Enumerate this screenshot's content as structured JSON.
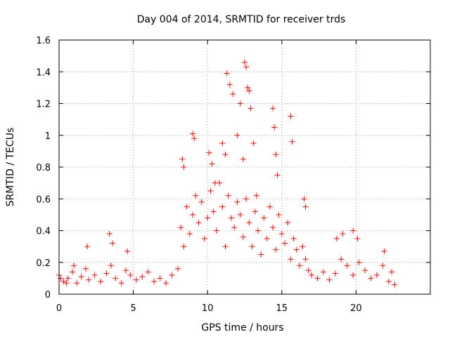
{
  "chart_data": {
    "type": "scatter",
    "title": "Day 004 of 2014, SRMTID for receiver trds",
    "xlabel": "GPS time / hours",
    "ylabel": "SRMTID / TECUs",
    "xlim": [
      0,
      25
    ],
    "ylim": [
      0,
      1.6
    ],
    "xticks": [
      0,
      5,
      10,
      15,
      20
    ],
    "xtick_labels": [
      "0",
      "5",
      "10",
      "15",
      "20"
    ],
    "yticks": [
      0,
      0.2,
      0.4,
      0.6,
      0.8,
      1,
      1.2,
      1.4,
      1.6
    ],
    "ytick_labels": [
      "0",
      "0.2",
      "0.4",
      "0.6",
      "0.8",
      "1",
      "1.2",
      "1.4",
      "1.6"
    ],
    "grid": true,
    "marker": "plus",
    "color": "#ff0000",
    "series": [
      {
        "name": "SRMTID",
        "x": [
          0.0,
          0.3,
          0.6,
          0.9,
          1.2,
          1.5,
          1.8,
          2.0,
          2.4,
          2.8,
          3.2,
          3.5,
          3.8,
          4.2,
          4.5,
          4.8,
          5.2,
          5.6,
          6.0,
          6.4,
          6.8,
          7.2,
          7.6,
          8.0,
          8.2,
          8.4,
          8.6,
          8.8,
          9.0,
          9.2,
          9.4,
          9.6,
          9.8,
          10.0,
          10.2,
          10.4,
          10.6,
          10.8,
          11.0,
          11.2,
          11.4,
          11.6,
          11.8,
          12.0,
          12.2,
          12.4,
          12.6,
          12.8,
          13.0,
          13.2,
          13.4,
          13.6,
          13.8,
          14.0,
          14.2,
          14.4,
          14.6,
          14.8,
          15.0,
          15.2,
          15.4,
          15.6,
          15.8,
          16.0,
          16.2,
          16.4,
          16.6,
          16.8,
          17.0,
          17.4,
          17.8,
          18.2,
          18.6,
          19.0,
          19.4,
          19.8,
          20.2,
          20.6,
          21.0,
          21.4,
          21.8,
          22.2,
          22.6,
          0.1,
          0.5,
          1.0,
          1.9,
          3.4,
          3.6,
          4.6,
          8.3,
          8.4,
          9.0,
          9.1,
          10.1,
          10.3,
          10.5,
          11.0,
          11.2,
          11.3,
          11.5,
          11.7,
          12.0,
          12.2,
          12.4,
          12.5,
          12.6,
          12.7,
          12.8,
          12.9,
          13.1,
          13.3,
          14.4,
          14.5,
          14.6,
          14.7,
          15.6,
          15.7,
          16.5,
          16.6,
          18.7,
          19.1,
          19.8,
          20.1,
          21.9,
          22.4
        ],
        "y": [
          0.12,
          0.08,
          0.1,
          0.14,
          0.07,
          0.11,
          0.16,
          0.09,
          0.12,
          0.08,
          0.13,
          0.18,
          0.1,
          0.07,
          0.15,
          0.12,
          0.09,
          0.11,
          0.14,
          0.08,
          0.1,
          0.07,
          0.12,
          0.16,
          0.42,
          0.3,
          0.55,
          0.38,
          0.5,
          0.62,
          0.45,
          0.58,
          0.35,
          0.48,
          0.65,
          0.52,
          0.4,
          0.7,
          0.55,
          0.3,
          0.62,
          0.48,
          0.42,
          0.58,
          0.5,
          0.36,
          0.6,
          0.45,
          0.3,
          0.52,
          0.4,
          0.25,
          0.48,
          0.35,
          0.55,
          0.42,
          0.28,
          0.5,
          0.38,
          0.32,
          0.45,
          0.22,
          0.35,
          0.28,
          0.18,
          0.3,
          0.22,
          0.15,
          0.12,
          0.1,
          0.14,
          0.09,
          0.13,
          0.22,
          0.18,
          0.12,
          0.2,
          0.15,
          0.1,
          0.12,
          0.18,
          0.08,
          0.06,
          0.1,
          0.07,
          0.18,
          0.3,
          0.38,
          0.32,
          0.27,
          0.85,
          0.8,
          1.01,
          0.98,
          0.89,
          0.82,
          0.7,
          0.95,
          0.88,
          1.39,
          1.32,
          1.26,
          1.0,
          1.2,
          0.85,
          1.46,
          1.43,
          1.3,
          1.28,
          1.17,
          0.95,
          0.62,
          1.17,
          1.05,
          0.88,
          0.75,
          1.12,
          0.96,
          0.6,
          0.55,
          0.35,
          0.38,
          0.4,
          0.35,
          0.27,
          0.14
        ]
      }
    ]
  }
}
